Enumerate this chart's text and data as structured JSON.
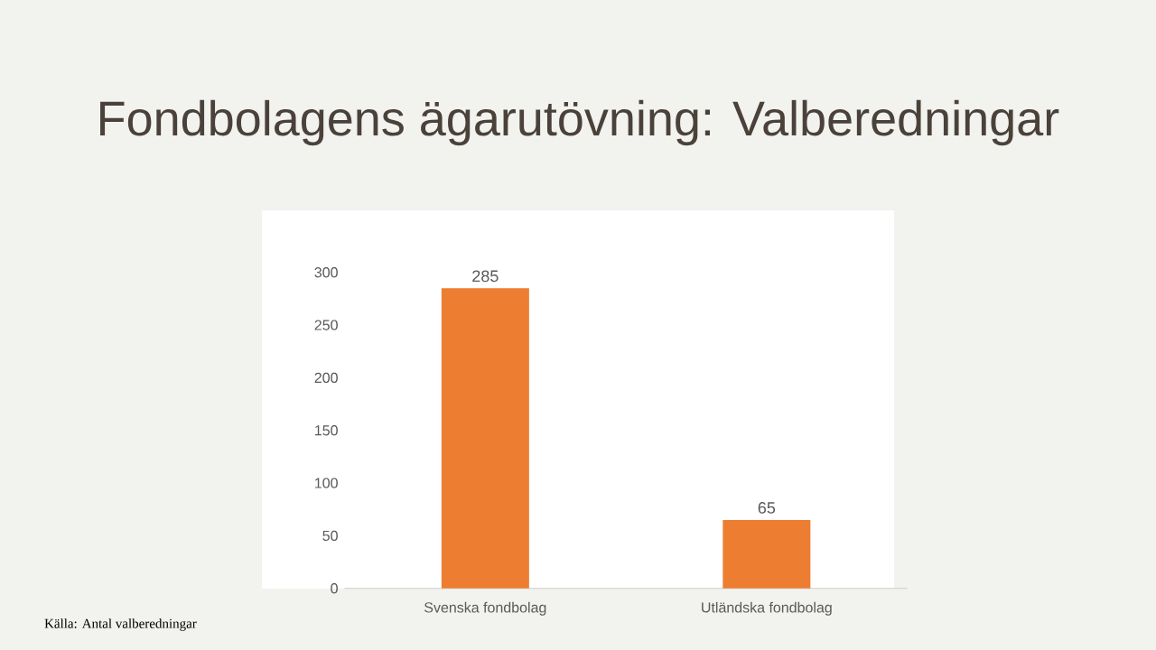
{
  "chart_data": {
    "type": "bar",
    "title": "Fondbolagens ägarutövning: Valberedningar",
    "categories": [
      "Svenska fondbolag",
      "Utländska fondbolag"
    ],
    "values": [
      285,
      65
    ],
    "color": "#ed7d31",
    "ylim": [
      0,
      300
    ],
    "yticks": [
      0,
      50,
      100,
      150,
      200,
      250,
      300
    ],
    "data_labels": true,
    "grid": false,
    "annotations": [
      "Källa: Antal valberedningar"
    ]
  }
}
